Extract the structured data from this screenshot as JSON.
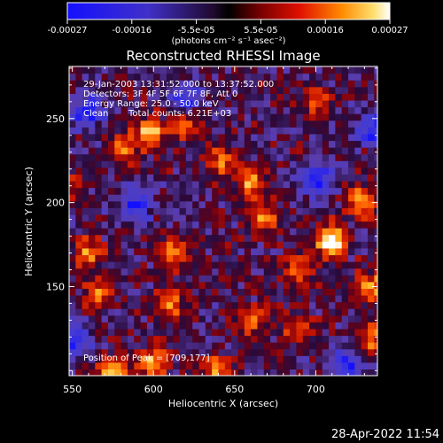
{
  "colorbar": {
    "tick_labels": [
      "-0.00027",
      "-0.00016",
      "-5.5e-05",
      "5.5e-05",
      "0.00016",
      "0.00027"
    ],
    "min": -0.00027,
    "max": 0.00027,
    "units": "(photons cm⁻² s⁻¹ asec⁻²)"
  },
  "chart_data": {
    "type": "heatmap",
    "title": "Reconstructed RHESSI Image",
    "xlabel": "Heliocentric X (arcsec)",
    "ylabel": "Heliocentric Y (arcsec)",
    "xlim": [
      548,
      738
    ],
    "ylim": [
      97,
      281
    ],
    "x_ticks": [
      550,
      600,
      650,
      700
    ],
    "y_ticks": [
      150,
      200,
      250
    ],
    "peak_position": [
      709,
      177
    ],
    "hot_regions": [
      {
        "x": 709,
        "y": 177,
        "intensity": 1.0
      },
      {
        "x": 728,
        "y": 200,
        "intensity": 0.75
      },
      {
        "x": 598,
        "y": 242,
        "intensity": 0.7
      },
      {
        "x": 620,
        "y": 248,
        "intensity": 0.65
      },
      {
        "x": 580,
        "y": 232,
        "intensity": 0.6
      },
      {
        "x": 640,
        "y": 225,
        "intensity": 0.55
      },
      {
        "x": 660,
        "y": 212,
        "intensity": 0.6
      },
      {
        "x": 668,
        "y": 190,
        "intensity": 0.55
      },
      {
        "x": 690,
        "y": 160,
        "intensity": 0.55
      },
      {
        "x": 735,
        "y": 150,
        "intensity": 0.65
      },
      {
        "x": 735,
        "y": 120,
        "intensity": 0.6
      },
      {
        "x": 560,
        "y": 170,
        "intensity": 0.6
      },
      {
        "x": 566,
        "y": 145,
        "intensity": 0.5
      },
      {
        "x": 612,
        "y": 170,
        "intensity": 0.6
      },
      {
        "x": 610,
        "y": 140,
        "intensity": 0.55
      },
      {
        "x": 660,
        "y": 130,
        "intensity": 0.55
      },
      {
        "x": 600,
        "y": 105,
        "intensity": 0.7
      },
      {
        "x": 575,
        "y": 100,
        "intensity": 0.65
      },
      {
        "x": 640,
        "y": 100,
        "intensity": 0.6
      },
      {
        "x": 545,
        "y": 210,
        "intensity": 0.6
      },
      {
        "x": 690,
        "y": 125,
        "intensity": 0.5
      },
      {
        "x": 700,
        "y": 260,
        "intensity": 0.45
      }
    ],
    "cold_regions": [
      {
        "x": 735,
        "y": 245
      },
      {
        "x": 560,
        "y": 255
      },
      {
        "x": 590,
        "y": 200
      },
      {
        "x": 620,
        "y": 260
      },
      {
        "x": 700,
        "y": 215
      },
      {
        "x": 550,
        "y": 120
      },
      {
        "x": 720,
        "y": 105
      }
    ]
  },
  "info": {
    "line1": "29-Jan-2003 13:31:52.000 to 13:37:52.000",
    "line2": "Detectors: 3F 4F 5F 6F 7F 8F, Att 0",
    "line3": "Energy Range: 25.0 - 50.0 keV",
    "line4_left": "Clean",
    "line4_right": "Total counts: 6.21E+03",
    "peak": "Position of Peak = [709,177]"
  },
  "footer": {
    "timestamp": "28-Apr-2022 11:54"
  }
}
